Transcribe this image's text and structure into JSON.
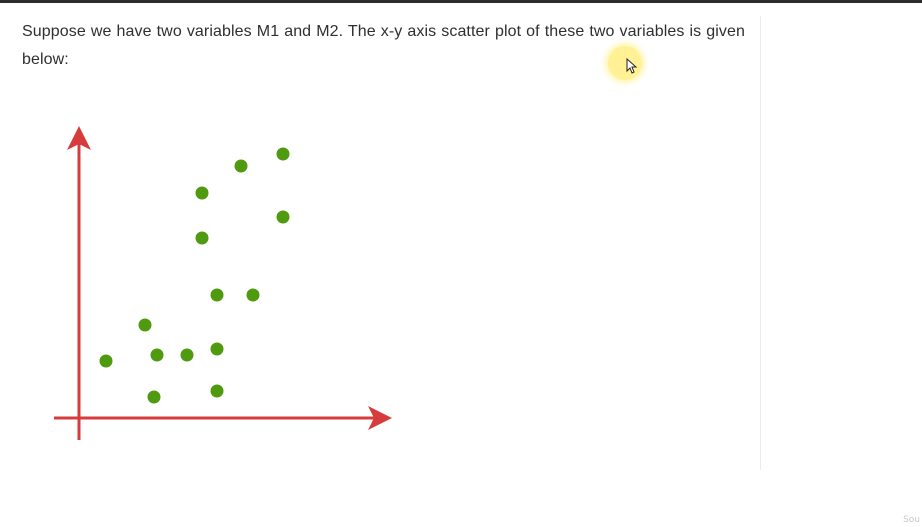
{
  "question": {
    "text": "Suppose we have two variables M1 and M2. The x-y axis scatter plot of these two variables is given below:"
  },
  "watermark": {
    "text": "Sou"
  },
  "chart_data": {
    "type": "scatter",
    "title": "",
    "xlabel": "",
    "ylabel": "",
    "grid": false,
    "xlim": [
      0,
      10
    ],
    "ylim": [
      0,
      10
    ],
    "point_color": "#4f9a0f",
    "axis_color": "#d63c3c",
    "points": [
      {
        "x": 0.9,
        "y": 1.9
      },
      {
        "x": 2.2,
        "y": 3.1
      },
      {
        "x": 2.5,
        "y": 0.7
      },
      {
        "x": 2.6,
        "y": 2.1
      },
      {
        "x": 3.6,
        "y": 2.1
      },
      {
        "x": 4.1,
        "y": 6.0
      },
      {
        "x": 4.1,
        "y": 7.5
      },
      {
        "x": 4.6,
        "y": 0.9
      },
      {
        "x": 4.6,
        "y": 2.3
      },
      {
        "x": 4.6,
        "y": 4.1
      },
      {
        "x": 5.4,
        "y": 8.4
      },
      {
        "x": 5.8,
        "y": 4.1
      },
      {
        "x": 6.8,
        "y": 6.7
      },
      {
        "x": 6.8,
        "y": 8.8
      }
    ]
  }
}
